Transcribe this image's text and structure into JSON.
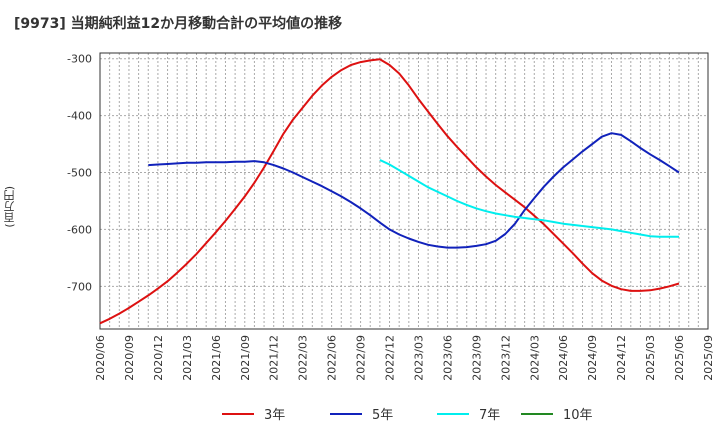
{
  "chart_data": {
    "type": "line",
    "title": "[9973]  当期純利益12か月移動合計の平均値の推移",
    "ylabel": "(百万円)",
    "xlabel": "",
    "ylim": [
      -775,
      -290
    ],
    "yticks": [
      -300,
      -400,
      -500,
      -600,
      -700
    ],
    "xticks": [
      "2020/06",
      "2020/09",
      "2020/12",
      "2021/03",
      "2021/06",
      "2021/09",
      "2021/12",
      "2022/03",
      "2022/06",
      "2022/09",
      "2022/12",
      "2023/03",
      "2023/06",
      "2023/09",
      "2023/12",
      "2024/03",
      "2024/06",
      "2024/09",
      "2024/12",
      "2025/03",
      "2025/06",
      "2025/09"
    ],
    "grid": true,
    "legend_position": "bottom",
    "series": [
      {
        "name": "3年",
        "color": "#dd1111",
        "x": [
          "2020/06",
          "2020/07",
          "2020/08",
          "2020/09",
          "2020/10",
          "2020/11",
          "2020/12",
          "2021/01",
          "2021/02",
          "2021/03",
          "2021/04",
          "2021/05",
          "2021/06",
          "2021/07",
          "2021/08",
          "2021/09",
          "2021/10",
          "2021/11",
          "2021/12",
          "2022/01",
          "2022/02",
          "2022/03",
          "2022/04",
          "2022/05",
          "2022/06",
          "2022/07",
          "2022/08",
          "2022/09",
          "2022/10",
          "2022/11",
          "2022/12",
          "2023/01",
          "2023/02",
          "2023/03",
          "2023/04",
          "2023/05",
          "2023/06",
          "2023/07",
          "2023/08",
          "2023/09",
          "2023/10",
          "2023/11",
          "2023/12",
          "2024/01",
          "2024/02",
          "2024/03",
          "2024/04",
          "2024/05",
          "2024/06",
          "2024/07",
          "2024/08",
          "2024/09",
          "2024/10",
          "2024/11",
          "2024/12",
          "2025/01",
          "2025/02",
          "2025/03",
          "2025/04",
          "2025/05",
          "2025/06"
        ],
        "values": [
          -765,
          -757,
          -748,
          -738,
          -727,
          -716,
          -704,
          -691,
          -676,
          -660,
          -643,
          -624,
          -605,
          -585,
          -564,
          -542,
          -518,
          -491,
          -462,
          -432,
          -407,
          -386,
          -365,
          -347,
          -332,
          -320,
          -311,
          -306,
          -303,
          -301,
          -311,
          -326,
          -347,
          -371,
          -393,
          -415,
          -436,
          -455,
          -473,
          -491,
          -507,
          -522,
          -535,
          -548,
          -561,
          -576,
          -591,
          -608,
          -625,
          -642,
          -660,
          -677,
          -690,
          -699,
          -705,
          -708,
          -708,
          -707,
          -704,
          -700,
          -695
        ]
      },
      {
        "name": "5年",
        "color": "#1122bb",
        "x": [
          "2020/11",
          "2020/12",
          "2021/01",
          "2021/02",
          "2021/03",
          "2021/04",
          "2021/05",
          "2021/06",
          "2021/07",
          "2021/08",
          "2021/09",
          "2021/10",
          "2021/11",
          "2021/12",
          "2022/01",
          "2022/02",
          "2022/03",
          "2022/04",
          "2022/05",
          "2022/06",
          "2022/07",
          "2022/08",
          "2022/09",
          "2022/10",
          "2022/11",
          "2022/12",
          "2023/01",
          "2023/02",
          "2023/03",
          "2023/04",
          "2023/05",
          "2023/06",
          "2023/07",
          "2023/08",
          "2023/09",
          "2023/10",
          "2023/11",
          "2023/12",
          "2024/01",
          "2024/02",
          "2024/03",
          "2024/04",
          "2024/05",
          "2024/06",
          "2024/07",
          "2024/08",
          "2024/09",
          "2024/10",
          "2024/11",
          "2024/12",
          "2025/01",
          "2025/02",
          "2025/03",
          "2025/04",
          "2025/05",
          "2025/06"
        ],
        "values": [
          -487,
          -486,
          -485,
          -484,
          -483,
          -483,
          -482,
          -482,
          -482,
          -481,
          -481,
          -480,
          -482,
          -487,
          -493,
          -500,
          -508,
          -516,
          -524,
          -533,
          -542,
          -552,
          -563,
          -575,
          -588,
          -600,
          -609,
          -616,
          -622,
          -627,
          -630,
          -632,
          -632,
          -631,
          -629,
          -626,
          -620,
          -608,
          -590,
          -566,
          -545,
          -525,
          -507,
          -491,
          -477,
          -463,
          -450,
          -437,
          -431,
          -434,
          -445,
          -457,
          -468,
          -478,
          -489,
          -500
        ]
      },
      {
        "name": "7年",
        "color": "#00eeee",
        "x": [
          "2022/11",
          "2022/12",
          "2023/01",
          "2023/02",
          "2023/03",
          "2023/04",
          "2023/05",
          "2023/06",
          "2023/07",
          "2023/08",
          "2023/09",
          "2023/10",
          "2023/11",
          "2023/12",
          "2024/01",
          "2024/02",
          "2024/03",
          "2024/04",
          "2024/05",
          "2024/06",
          "2024/07",
          "2024/08",
          "2024/09",
          "2024/10",
          "2024/11",
          "2024/12",
          "2025/01",
          "2025/02",
          "2025/03",
          "2025/04",
          "2025/05",
          "2025/06"
        ],
        "values": [
          -478,
          -486,
          -496,
          -506,
          -516,
          -526,
          -534,
          -542,
          -550,
          -557,
          -563,
          -568,
          -572,
          -575,
          -578,
          -580,
          -582,
          -584,
          -587,
          -590,
          -592,
          -594,
          -596,
          -598,
          -600,
          -603,
          -606,
          -609,
          -612,
          -613,
          -613,
          -613
        ]
      },
      {
        "name": "10年",
        "color": "#228822",
        "x": [],
        "values": []
      }
    ]
  }
}
